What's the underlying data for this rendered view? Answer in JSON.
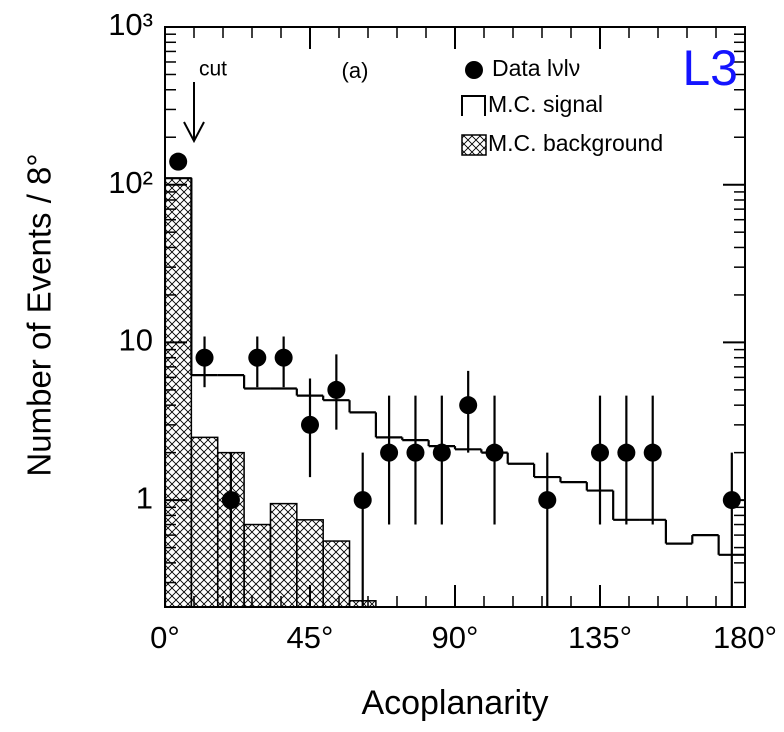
{
  "chart_data": {
    "type": "histogram",
    "xlabel": "Acoplanarity",
    "ylabel": "Number of Events / 8°",
    "annotations": [
      {
        "text": "cut",
        "x": 9
      },
      {
        "text": "(a)"
      },
      {
        "text": "L3",
        "color": "#1414ff"
      }
    ],
    "bins": [
      0,
      8.18,
      16.36,
      24.55,
      32.73,
      40.91,
      49.09,
      57.27,
      65.45,
      73.64,
      81.82,
      90,
      98.18,
      106.36,
      114.55,
      122.73,
      130.91,
      139.09,
      147.27,
      155.45,
      163.64,
      171.82,
      180
    ],
    "series": [
      {
        "name": "Data lνlν",
        "style": "points",
        "color": "#000000",
        "values": [
          140,
          8,
          1,
          8,
          8,
          3,
          5,
          1,
          2,
          2,
          2,
          4,
          2,
          null,
          1,
          null,
          2,
          2,
          2,
          null,
          null,
          1
        ],
        "lower": [
          128,
          5.2,
          0.17,
          5.2,
          5.2,
          1.4,
          2.8,
          0.17,
          0.7,
          0.7,
          0.7,
          2.0,
          0.7,
          null,
          0.17,
          null,
          0.7,
          0.7,
          0.7,
          null,
          null,
          0.17
        ],
        "upper": [
          152,
          10.9,
          2.0,
          10.9,
          10.9,
          5.9,
          8.4,
          2.0,
          4.6,
          4.6,
          4.6,
          6.6,
          4.6,
          null,
          2.0,
          null,
          4.6,
          4.6,
          4.6,
          null,
          null,
          2.0
        ]
      },
      {
        "name": "M.C. signal",
        "style": "step",
        "color": "#000000",
        "values": [
          110,
          6.2,
          6.2,
          5.1,
          5.1,
          4.6,
          4.3,
          3.6,
          2.5,
          2.4,
          2.2,
          2.1,
          2.0,
          1.7,
          1.4,
          1.3,
          1.15,
          0.75,
          0.75,
          0.53,
          0.6,
          0.45
        ]
      },
      {
        "name": "M.C. background",
        "style": "hatched",
        "color": "#000000",
        "values": [
          110,
          2.5,
          2.0,
          0.7,
          0.95,
          0.75,
          0.55,
          0.23,
          null,
          null,
          null,
          null,
          null,
          null,
          null,
          null,
          null,
          null,
          null,
          null,
          null,
          null
        ]
      }
    ],
    "xlim": [
      0,
      180
    ],
    "xticks": [
      {
        "value": 0,
        "label": "0°"
      },
      {
        "value": 45,
        "label": "45°"
      },
      {
        "value": 90,
        "label": "90°"
      },
      {
        "value": 135,
        "label": "135°"
      },
      {
        "value": 180,
        "label": "180°"
      }
    ],
    "ylim": [
      0.21,
      1000
    ],
    "log_y": true,
    "yticks": [
      1,
      10,
      {
        "value": 100,
        "label": "10²"
      },
      {
        "value": 1000,
        "label": "10³"
      }
    ],
    "legend": "top-right"
  }
}
